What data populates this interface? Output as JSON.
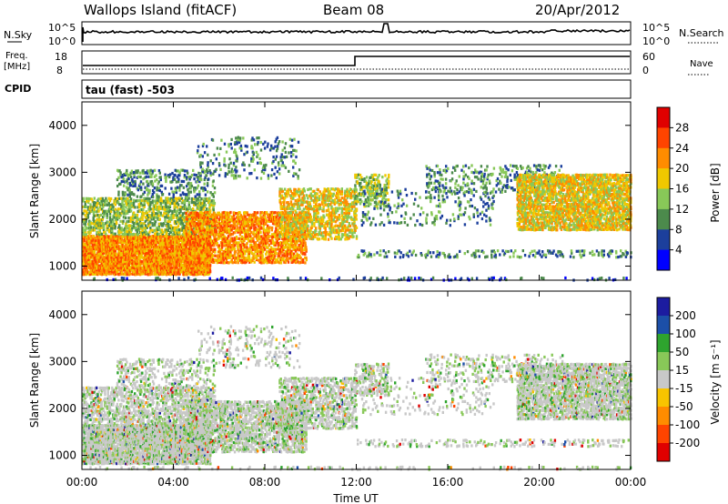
{
  "header": {
    "station": "Wallops Island (fitACF)",
    "beam": "Beam 08",
    "date": "20/Apr/2012"
  },
  "status_panels": {
    "nsky_label": "N.Sky",
    "nsky_ticks": [
      "10^5",
      "10^0"
    ],
    "nsearch_label": "N.Search",
    "nsearch_ticks": [
      "10^5",
      "10^0"
    ],
    "freq_label_line1": "Freq.",
    "freq_label_line2": "[MHz]",
    "freq_ticks": [
      "18",
      "8"
    ],
    "nave_label": "Nave",
    "nave_ticks": [
      "60",
      "0"
    ],
    "cpid_label": "CPID",
    "cpid_value": "tau (fast) -503"
  },
  "colors": {
    "power": [
      "#0000ff",
      "#1c3f9c",
      "#4c8a4c",
      "#88c858",
      "#f0c800",
      "#ff8c00",
      "#ff4400",
      "#e00000"
    ],
    "velocity": [
      "#e00000",
      "#ff4400",
      "#ff8c00",
      "#f8c400",
      "#c8c8c8",
      "#88c858",
      "#2ea42e",
      "#1c4fa8",
      "#1c1ca0"
    ]
  },
  "chart_data": [
    {
      "type": "heatmap",
      "name": "power",
      "ylabel": "Slant Range [km]",
      "ylim": [
        700,
        4500
      ],
      "yticks": [
        "1000",
        "2000",
        "3000",
        "4000"
      ],
      "xlim_hours": [
        0,
        24
      ],
      "colorbar": {
        "label": "Power [dB]",
        "ticks": [
          "4",
          "8",
          "12",
          "16",
          "20",
          "24",
          "28"
        ]
      }
    },
    {
      "type": "heatmap",
      "name": "velocity",
      "ylabel": "Slant Range [km]",
      "xlabel": "Time UT",
      "ylim": [
        700,
        4500
      ],
      "yticks": [
        "1000",
        "2000",
        "3000",
        "4000"
      ],
      "xticks": [
        "00:00",
        "04:00",
        "08:00",
        "12:00",
        "16:00",
        "20:00",
        "00:00"
      ],
      "xlim_hours": [
        0,
        24
      ],
      "colorbar": {
        "label": "Velocity [m s⁻¹]",
        "ticks": [
          "200",
          "100",
          "50",
          "15",
          "-15",
          "-50",
          "-100",
          "-200"
        ]
      }
    }
  ]
}
